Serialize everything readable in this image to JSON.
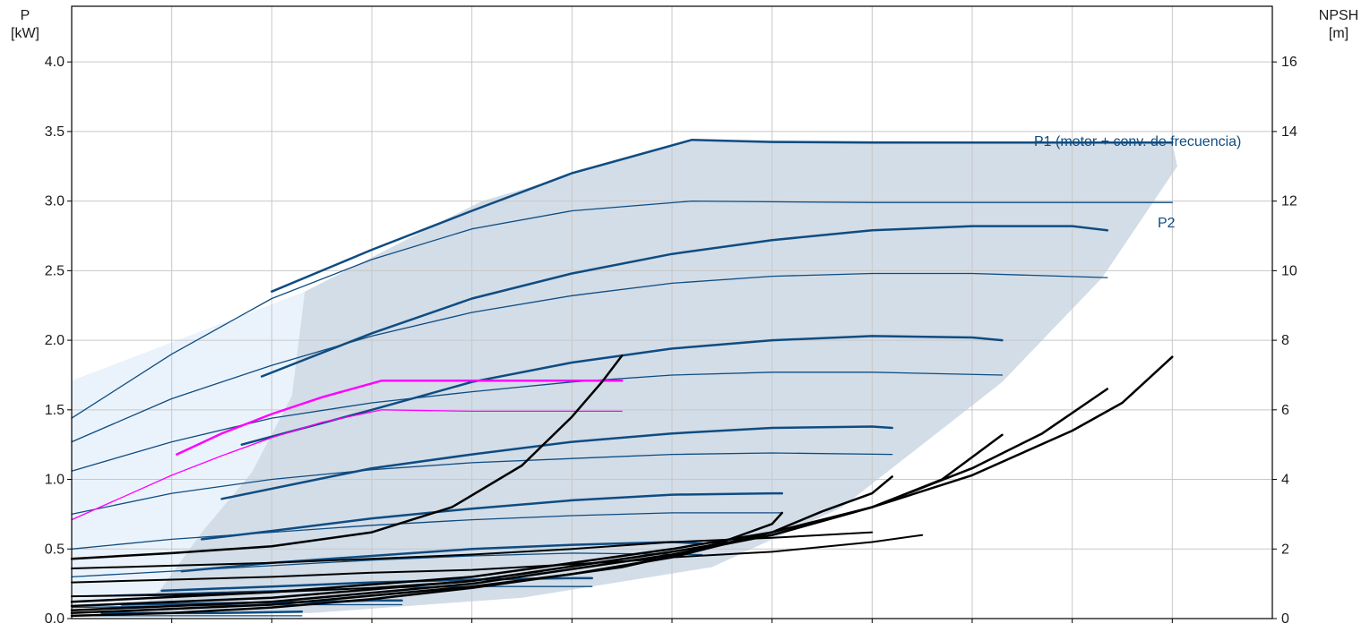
{
  "chart_data": {
    "type": "line",
    "title": "",
    "left_axis": {
      "label": "P",
      "unit": "[kW]",
      "range": [
        0,
        4.4
      ],
      "ticks": [
        "0.0",
        "0.5",
        "1.0",
        "1.5",
        "2.0",
        "2.5",
        "3.0",
        "3.5",
        "4.0"
      ]
    },
    "right_axis": {
      "label": "NPSH",
      "unit": "[m]",
      "range": [
        0,
        17.6
      ],
      "ticks": [
        "0",
        "2",
        "4",
        "6",
        "8",
        "10",
        "12",
        "14",
        "16"
      ]
    },
    "x_axis": {
      "range": [
        0,
        12
      ],
      "gridlines": 12,
      "tick_labels": []
    },
    "grid": true,
    "colors": {
      "series": "#0f4c81",
      "envelope": "#d2dde8",
      "envelope_light": "#eaf3fb",
      "highlight": "#ff00ff",
      "npsh": "#000000",
      "grid": "#c8c8c8"
    },
    "annotations": [
      {
        "text": "P1 (motor + conv. de frecuencia)",
        "color": "#0f4c81"
      },
      {
        "text": "P2",
        "color": "#0f4c81"
      }
    ],
    "envelope_region": [
      [
        0.62,
        0.02
      ],
      [
        0.9,
        0.22
      ],
      [
        1.3,
        0.62
      ],
      [
        1.8,
        1.05
      ],
      [
        2.2,
        1.6
      ],
      [
        2.33,
        2.35
      ],
      [
        4.1,
        3.0
      ],
      [
        6.2,
        3.44
      ],
      [
        11.0,
        3.42
      ],
      [
        11.05,
        3.25
      ],
      [
        10.3,
        2.45
      ],
      [
        9.3,
        1.7
      ],
      [
        7.7,
        0.8
      ],
      [
        6.4,
        0.37
      ],
      [
        4.5,
        0.15
      ],
      [
        2.4,
        0.04
      ],
      [
        0.62,
        0.02
      ]
    ],
    "light_region": [
      [
        0.0,
        1.71
      ],
      [
        0.0,
        0.1
      ],
      [
        0.62,
        0.02
      ],
      [
        0.9,
        0.22
      ],
      [
        1.3,
        0.62
      ],
      [
        1.8,
        1.05
      ],
      [
        2.2,
        1.6
      ],
      [
        2.33,
        2.35
      ],
      [
        0.0,
        1.71
      ]
    ],
    "series": [
      {
        "name": "P1",
        "role": "P1",
        "width": 2.5,
        "points": [
          [
            2.0,
            2.35
          ],
          [
            3.0,
            2.65
          ],
          [
            4.0,
            2.93
          ],
          [
            5.0,
            3.2
          ],
          [
            6.2,
            3.44
          ],
          [
            7.0,
            3.425
          ],
          [
            8.0,
            3.42
          ],
          [
            9.0,
            3.42
          ],
          [
            10.0,
            3.42
          ],
          [
            11.0,
            3.42
          ]
        ]
      },
      {
        "name": "P2",
        "role": "P2",
        "width": 1.3,
        "points": [
          [
            0.0,
            1.44
          ],
          [
            1.0,
            1.9
          ],
          [
            2.0,
            2.3
          ],
          [
            3.0,
            2.58
          ],
          [
            4.0,
            2.8
          ],
          [
            5.0,
            2.93
          ],
          [
            6.2,
            3.0
          ],
          [
            7.0,
            2.995
          ],
          [
            8.0,
            2.99
          ],
          [
            9.0,
            2.99
          ],
          [
            10.0,
            2.99
          ],
          [
            11.0,
            2.99
          ]
        ]
      },
      {
        "role": "p1",
        "width": 2.5,
        "points": [
          [
            1.9,
            1.74
          ],
          [
            3.0,
            2.05
          ],
          [
            4.0,
            2.3
          ],
          [
            5.0,
            2.48
          ],
          [
            6.0,
            2.62
          ],
          [
            7.0,
            2.72
          ],
          [
            8.0,
            2.79
          ],
          [
            9.0,
            2.82
          ],
          [
            10.0,
            2.82
          ],
          [
            10.35,
            2.79
          ]
        ]
      },
      {
        "role": "p2",
        "width": 1.3,
        "points": [
          [
            0.0,
            1.27
          ],
          [
            1.0,
            1.58
          ],
          [
            2.0,
            1.82
          ],
          [
            3.0,
            2.03
          ],
          [
            4.0,
            2.2
          ],
          [
            5.0,
            2.32
          ],
          [
            6.0,
            2.41
          ],
          [
            7.0,
            2.46
          ],
          [
            8.0,
            2.48
          ],
          [
            9.0,
            2.48
          ],
          [
            10.35,
            2.45
          ]
        ]
      },
      {
        "role": "p1",
        "width": 2.5,
        "points": [
          [
            1.7,
            1.25
          ],
          [
            3.0,
            1.5
          ],
          [
            4.0,
            1.7
          ],
          [
            5.0,
            1.84
          ],
          [
            6.0,
            1.94
          ],
          [
            7.0,
            2.0
          ],
          [
            8.0,
            2.03
          ],
          [
            9.0,
            2.02
          ],
          [
            9.3,
            2.0
          ]
        ]
      },
      {
        "role": "p2",
        "width": 1.3,
        "points": [
          [
            0.0,
            1.06
          ],
          [
            1.0,
            1.27
          ],
          [
            2.0,
            1.44
          ],
          [
            3.0,
            1.55
          ],
          [
            4.0,
            1.63
          ],
          [
            5.0,
            1.7
          ],
          [
            6.0,
            1.75
          ],
          [
            7.0,
            1.77
          ],
          [
            8.0,
            1.77
          ],
          [
            9.3,
            1.75
          ]
        ]
      },
      {
        "role": "p1",
        "width": 2.5,
        "points": [
          [
            1.5,
            0.86
          ],
          [
            3.0,
            1.08
          ],
          [
            4.0,
            1.18
          ],
          [
            5.0,
            1.27
          ],
          [
            6.0,
            1.33
          ],
          [
            7.0,
            1.37
          ],
          [
            8.0,
            1.38
          ],
          [
            8.2,
            1.37
          ]
        ]
      },
      {
        "role": "p2",
        "width": 1.3,
        "points": [
          [
            0.0,
            0.75
          ],
          [
            1.0,
            0.9
          ],
          [
            2.0,
            1.0
          ],
          [
            3.0,
            1.07
          ],
          [
            4.0,
            1.12
          ],
          [
            5.0,
            1.15
          ],
          [
            6.0,
            1.18
          ],
          [
            7.0,
            1.19
          ],
          [
            8.2,
            1.18
          ]
        ]
      },
      {
        "role": "p1",
        "width": 2.5,
        "points": [
          [
            1.3,
            0.57
          ],
          [
            2.0,
            0.63
          ],
          [
            3.0,
            0.72
          ],
          [
            4.0,
            0.79
          ],
          [
            5.0,
            0.85
          ],
          [
            6.0,
            0.89
          ],
          [
            7.0,
            0.9
          ],
          [
            7.1,
            0.9
          ]
        ]
      },
      {
        "role": "p2",
        "width": 1.3,
        "points": [
          [
            0.0,
            0.5
          ],
          [
            1.0,
            0.57
          ],
          [
            2.0,
            0.62
          ],
          [
            3.0,
            0.67
          ],
          [
            4.0,
            0.71
          ],
          [
            5.0,
            0.74
          ],
          [
            6.0,
            0.76
          ],
          [
            7.1,
            0.76
          ]
        ]
      },
      {
        "role": "p1",
        "width": 2.5,
        "points": [
          [
            1.1,
            0.34
          ],
          [
            2.0,
            0.4
          ],
          [
            3.0,
            0.45
          ],
          [
            4.0,
            0.5
          ],
          [
            5.0,
            0.53
          ],
          [
            6.0,
            0.55
          ],
          [
            6.3,
            0.54
          ]
        ]
      },
      {
        "role": "p2",
        "width": 1.3,
        "points": [
          [
            0.0,
            0.3
          ],
          [
            1.0,
            0.34
          ],
          [
            2.0,
            0.38
          ],
          [
            3.0,
            0.42
          ],
          [
            4.0,
            0.45
          ],
          [
            5.0,
            0.47
          ],
          [
            6.3,
            0.46
          ]
        ]
      },
      {
        "role": "p1",
        "width": 2.5,
        "points": [
          [
            0.9,
            0.2
          ],
          [
            2.0,
            0.23
          ],
          [
            3.0,
            0.26
          ],
          [
            4.0,
            0.28
          ],
          [
            5.0,
            0.29
          ],
          [
            5.2,
            0.29
          ]
        ]
      },
      {
        "role": "p2",
        "width": 1.3,
        "points": [
          [
            0.0,
            0.16
          ],
          [
            1.0,
            0.18
          ],
          [
            2.0,
            0.2
          ],
          [
            3.0,
            0.22
          ],
          [
            4.0,
            0.23
          ],
          [
            5.2,
            0.23
          ]
        ]
      },
      {
        "role": "p1",
        "width": 2.5,
        "points": [
          [
            0.5,
            0.1
          ],
          [
            1.5,
            0.11
          ],
          [
            2.5,
            0.12
          ],
          [
            3.0,
            0.13
          ],
          [
            3.3,
            0.13
          ]
        ]
      },
      {
        "role": "p2",
        "width": 1.3,
        "points": [
          [
            0.0,
            0.08
          ],
          [
            1.0,
            0.09
          ],
          [
            2.0,
            0.1
          ],
          [
            3.3,
            0.1
          ]
        ]
      },
      {
        "role": "p1",
        "width": 2.5,
        "points": [
          [
            0.3,
            0.04
          ],
          [
            1.5,
            0.04
          ],
          [
            2.3,
            0.05
          ],
          [
            2.3,
            0.05
          ]
        ]
      },
      {
        "role": "p2",
        "width": 1.3,
        "points": [
          [
            0.0,
            0.02
          ],
          [
            1.0,
            0.02
          ],
          [
            2.3,
            0.02
          ]
        ]
      },
      {
        "role": "hl1",
        "width": 2.5,
        "points": [
          [
            1.05,
            1.18
          ],
          [
            1.5,
            1.33
          ],
          [
            2.0,
            1.47
          ],
          [
            2.5,
            1.59
          ],
          [
            3.1,
            1.71
          ],
          [
            4.0,
            1.71
          ],
          [
            5.0,
            1.71
          ],
          [
            5.5,
            1.71
          ]
        ]
      },
      {
        "role": "hl2",
        "width": 1.3,
        "points": [
          [
            0.0,
            0.71
          ],
          [
            0.5,
            0.87
          ],
          [
            1.0,
            1.03
          ],
          [
            1.5,
            1.17
          ],
          [
            2.0,
            1.3
          ],
          [
            2.5,
            1.41
          ],
          [
            3.1,
            1.5
          ],
          [
            4.0,
            1.49
          ],
          [
            5.5,
            1.49
          ]
        ]
      },
      {
        "role": "npsh",
        "width": 2.5,
        "points": [
          [
            0.0,
            0.43
          ],
          [
            1.0,
            0.47
          ],
          [
            2.0,
            0.52
          ],
          [
            3.0,
            0.62
          ],
          [
            3.8,
            0.8
          ],
          [
            4.5,
            1.1
          ],
          [
            5.0,
            1.45
          ],
          [
            5.3,
            1.7
          ],
          [
            5.5,
            1.89
          ]
        ]
      },
      {
        "role": "npsh",
        "width": 2.5,
        "points": [
          [
            0.0,
            0.02
          ],
          [
            1.0,
            0.04
          ],
          [
            2.0,
            0.08
          ],
          [
            3.0,
            0.14
          ],
          [
            4.0,
            0.22
          ],
          [
            5.0,
            0.32
          ],
          [
            5.5,
            0.37
          ],
          [
            6.0,
            0.45
          ],
          [
            6.5,
            0.55
          ],
          [
            7.0,
            0.68
          ],
          [
            7.1,
            0.76
          ]
        ]
      },
      {
        "role": "npsh",
        "width": 2.5,
        "points": [
          [
            0.0,
            0.04
          ],
          [
            2.0,
            0.1
          ],
          [
            4.0,
            0.23
          ],
          [
            5.0,
            0.32
          ],
          [
            6.0,
            0.44
          ],
          [
            7.0,
            0.62
          ],
          [
            7.5,
            0.77
          ],
          [
            8.0,
            0.9
          ],
          [
            8.2,
            1.02
          ]
        ]
      },
      {
        "role": "npsh",
        "width": 2.5,
        "points": [
          [
            0.0,
            0.06
          ],
          [
            2.0,
            0.12
          ],
          [
            4.0,
            0.25
          ],
          [
            6.0,
            0.46
          ],
          [
            7.0,
            0.6
          ],
          [
            8.0,
            0.8
          ],
          [
            8.7,
            1.0
          ],
          [
            9.3,
            1.32
          ]
        ]
      },
      {
        "role": "npsh",
        "width": 2.5,
        "points": [
          [
            0.0,
            0.09
          ],
          [
            2.0,
            0.15
          ],
          [
            4.0,
            0.27
          ],
          [
            6.0,
            0.48
          ],
          [
            7.0,
            0.6
          ],
          [
            8.0,
            0.8
          ],
          [
            9.0,
            1.08
          ],
          [
            9.7,
            1.33
          ],
          [
            10.35,
            1.65
          ]
        ]
      },
      {
        "role": "npsh",
        "width": 2.5,
        "points": [
          [
            0.0,
            0.12
          ],
          [
            2.0,
            0.19
          ],
          [
            4.0,
            0.3
          ],
          [
            6.0,
            0.5
          ],
          [
            7.0,
            0.62
          ],
          [
            8.0,
            0.8
          ],
          [
            9.0,
            1.03
          ],
          [
            10.0,
            1.35
          ],
          [
            10.5,
            1.55
          ],
          [
            11.0,
            1.88
          ]
        ]
      },
      {
        "role": "npsh",
        "width": 2.0,
        "points": [
          [
            0.0,
            0.36
          ],
          [
            1.0,
            0.38
          ],
          [
            2.0,
            0.4
          ],
          [
            3.0,
            0.43
          ],
          [
            4.0,
            0.46
          ],
          [
            5.0,
            0.5
          ],
          [
            6.0,
            0.55
          ],
          [
            7.0,
            0.58
          ],
          [
            8.0,
            0.62
          ]
        ]
      },
      {
        "role": "npsh",
        "width": 2.0,
        "points": [
          [
            0.0,
            0.26
          ],
          [
            1.0,
            0.28
          ],
          [
            2.0,
            0.3
          ],
          [
            3.0,
            0.33
          ],
          [
            4.0,
            0.35
          ],
          [
            5.0,
            0.39
          ],
          [
            5.7,
            0.42
          ],
          [
            6.0,
            0.44
          ],
          [
            7.0,
            0.48
          ],
          [
            8.0,
            0.55
          ],
          [
            8.5,
            0.6
          ]
        ]
      },
      {
        "role": "npsh",
        "width": 2.0,
        "points": [
          [
            0.0,
            0.16
          ],
          [
            1.0,
            0.17
          ],
          [
            2.0,
            0.19
          ],
          [
            3.0,
            0.22
          ],
          [
            4.0,
            0.27
          ],
          [
            4.7,
            0.34
          ]
        ]
      }
    ]
  }
}
